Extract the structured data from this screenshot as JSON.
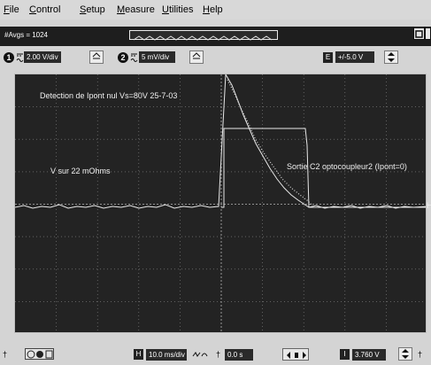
{
  "menu": {
    "items": [
      {
        "u": "F",
        "rest": "ile"
      },
      {
        "u": "C",
        "rest": "ontrol"
      },
      {
        "u": "S",
        "rest": "etup"
      },
      {
        "u": "M",
        "rest": "easure"
      },
      {
        "u": "U",
        "rest": "tilities"
      },
      {
        "u": "H",
        "rest": "elp"
      }
    ]
  },
  "toolbar": {
    "averaging": "#Avgs = 1024"
  },
  "channels": {
    "ch1": {
      "number": "1",
      "scale": "2.00 V/div"
    },
    "ch2": {
      "number": "2",
      "scale": "5 mV/div"
    },
    "external": {
      "badge": "E",
      "value": "+/-5.0 V"
    }
  },
  "scope": {
    "annotation_title": "Detection de Ipont nul Vs=80V 25-7-03",
    "annotation_left": "V sur 22 mOhms",
    "annotation_right": "Sortie C2 optocoupleur2 (Ipont=0)"
  },
  "bottom": {
    "h_badge": "H",
    "timebase": "10.0 ms/div",
    "delay": "0.0 s",
    "trigger_badge": "I",
    "trigger_level": "3.760 V"
  },
  "colors": {
    "screen": "#232323",
    "trace": "#e8e8e8",
    "grid": "#8a8a8a"
  }
}
